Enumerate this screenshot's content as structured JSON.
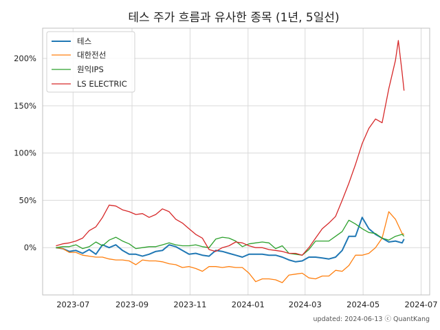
{
  "chart_data": {
    "type": "line",
    "title": "테스 주가 흐름과 유사한 종목 (1년, 5일선)",
    "xlabel": "",
    "ylabel": "",
    "x_ticks": [
      "2023-07",
      "2023-09",
      "2023-11",
      "2024-01",
      "2024-03",
      "2024-05",
      "2024-07"
    ],
    "y_ticks": [
      "0%",
      "50%",
      "100%",
      "150%",
      "200%"
    ],
    "y_tick_values": [
      0,
      50,
      100,
      150,
      200
    ],
    "xlim": [
      "2023-05-30",
      "2024-07-10"
    ],
    "ylim": [
      -50,
      232
    ],
    "grid": true,
    "legend_position": "top-left",
    "series": [
      {
        "name": "테스",
        "color": "#1f77b4",
        "points": [
          [
            "2023-06-13",
            0
          ],
          [
            "2023-06-20",
            -1
          ],
          [
            "2023-06-27",
            -4
          ],
          [
            "2023-07-04",
            -3
          ],
          [
            "2023-07-11",
            -6
          ],
          [
            "2023-07-18",
            -2
          ],
          [
            "2023-07-25",
            -7
          ],
          [
            "2023-08-01",
            3
          ],
          [
            "2023-08-08",
            0
          ],
          [
            "2023-08-15",
            3
          ],
          [
            "2023-08-22",
            -3
          ],
          [
            "2023-08-29",
            -7
          ],
          [
            "2023-09-05",
            -7
          ],
          [
            "2023-09-12",
            -9
          ],
          [
            "2023-09-19",
            -7
          ],
          [
            "2023-09-26",
            -4
          ],
          [
            "2023-10-03",
            -3
          ],
          [
            "2023-10-10",
            3
          ],
          [
            "2023-10-17",
            1
          ],
          [
            "2023-10-24",
            -3
          ],
          [
            "2023-10-31",
            -7
          ],
          [
            "2023-11-07",
            -6
          ],
          [
            "2023-11-14",
            -8
          ],
          [
            "2023-11-21",
            -9
          ],
          [
            "2023-11-28",
            -3
          ],
          [
            "2023-12-05",
            -4
          ],
          [
            "2023-12-12",
            -6
          ],
          [
            "2023-12-19",
            -8
          ],
          [
            "2023-12-26",
            -10
          ],
          [
            "2024-01-02",
            -7
          ],
          [
            "2024-01-09",
            -7
          ],
          [
            "2024-01-16",
            -7
          ],
          [
            "2024-01-23",
            -8
          ],
          [
            "2024-01-30",
            -8
          ],
          [
            "2024-02-06",
            -10
          ],
          [
            "2024-02-13",
            -13
          ],
          [
            "2024-02-20",
            -15
          ],
          [
            "2024-02-27",
            -14
          ],
          [
            "2024-03-05",
            -10
          ],
          [
            "2024-03-12",
            -10
          ],
          [
            "2024-03-19",
            -11
          ],
          [
            "2024-03-26",
            -12
          ],
          [
            "2024-04-02",
            -10
          ],
          [
            "2024-04-09",
            -3
          ],
          [
            "2024-04-16",
            12
          ],
          [
            "2024-04-23",
            12
          ],
          [
            "2024-04-30",
            32
          ],
          [
            "2024-05-07",
            20
          ],
          [
            "2024-05-14",
            14
          ],
          [
            "2024-05-21",
            10
          ],
          [
            "2024-05-28",
            6
          ],
          [
            "2024-06-04",
            7
          ],
          [
            "2024-06-11",
            5
          ],
          [
            "2024-06-13",
            9
          ]
        ]
      },
      {
        "name": "대한전선",
        "color": "#ff7f0e",
        "points": [
          [
            "2023-06-13",
            0
          ],
          [
            "2023-06-20",
            -1
          ],
          [
            "2023-06-27",
            -5
          ],
          [
            "2023-07-04",
            -5
          ],
          [
            "2023-07-11",
            -8
          ],
          [
            "2023-07-18",
            -9
          ],
          [
            "2023-07-25",
            -10
          ],
          [
            "2023-08-01",
            -10
          ],
          [
            "2023-08-08",
            -12
          ],
          [
            "2023-08-15",
            -13
          ],
          [
            "2023-08-22",
            -13
          ],
          [
            "2023-08-29",
            -14
          ],
          [
            "2023-09-05",
            -18
          ],
          [
            "2023-09-12",
            -13
          ],
          [
            "2023-09-19",
            -14
          ],
          [
            "2023-09-26",
            -14
          ],
          [
            "2023-10-03",
            -15
          ],
          [
            "2023-10-10",
            -17
          ],
          [
            "2023-10-17",
            -18
          ],
          [
            "2023-10-24",
            -21
          ],
          [
            "2023-10-31",
            -20
          ],
          [
            "2023-11-07",
            -22
          ],
          [
            "2023-11-14",
            -25
          ],
          [
            "2023-11-21",
            -20
          ],
          [
            "2023-11-28",
            -20
          ],
          [
            "2023-12-05",
            -21
          ],
          [
            "2023-12-12",
            -20
          ],
          [
            "2023-12-19",
            -21
          ],
          [
            "2023-12-26",
            -21
          ],
          [
            "2024-01-02",
            -27
          ],
          [
            "2024-01-09",
            -36
          ],
          [
            "2024-01-16",
            -33
          ],
          [
            "2024-01-23",
            -33
          ],
          [
            "2024-01-30",
            -34
          ],
          [
            "2024-02-06",
            -37
          ],
          [
            "2024-02-13",
            -29
          ],
          [
            "2024-02-20",
            -28
          ],
          [
            "2024-02-27",
            -27
          ],
          [
            "2024-03-05",
            -32
          ],
          [
            "2024-03-12",
            -33
          ],
          [
            "2024-03-19",
            -30
          ],
          [
            "2024-03-26",
            -30
          ],
          [
            "2024-04-02",
            -24
          ],
          [
            "2024-04-09",
            -25
          ],
          [
            "2024-04-16",
            -19
          ],
          [
            "2024-04-23",
            -8
          ],
          [
            "2024-04-30",
            -8
          ],
          [
            "2024-05-07",
            -6
          ],
          [
            "2024-05-14",
            0
          ],
          [
            "2024-05-21",
            10
          ],
          [
            "2024-05-28",
            38
          ],
          [
            "2024-06-04",
            30
          ],
          [
            "2024-06-11",
            15
          ],
          [
            "2024-06-13",
            14
          ]
        ]
      },
      {
        "name": "원익IPS",
        "color": "#2ca02c",
        "points": [
          [
            "2023-06-13",
            0
          ],
          [
            "2023-06-20",
            1
          ],
          [
            "2023-06-27",
            1
          ],
          [
            "2023-07-04",
            3
          ],
          [
            "2023-07-11",
            -1
          ],
          [
            "2023-07-18",
            1
          ],
          [
            "2023-07-25",
            6
          ],
          [
            "2023-08-01",
            2
          ],
          [
            "2023-08-08",
            8
          ],
          [
            "2023-08-15",
            11
          ],
          [
            "2023-08-22",
            7
          ],
          [
            "2023-08-29",
            4
          ],
          [
            "2023-09-05",
            -1
          ],
          [
            "2023-09-12",
            0
          ],
          [
            "2023-09-19",
            1
          ],
          [
            "2023-09-26",
            1
          ],
          [
            "2023-10-03",
            3
          ],
          [
            "2023-10-10",
            5
          ],
          [
            "2023-10-17",
            3
          ],
          [
            "2023-10-24",
            2
          ],
          [
            "2023-10-31",
            2
          ],
          [
            "2023-11-07",
            3
          ],
          [
            "2023-11-14",
            1
          ],
          [
            "2023-11-21",
            0
          ],
          [
            "2023-11-28",
            9
          ],
          [
            "2023-12-05",
            11
          ],
          [
            "2023-12-12",
            10
          ],
          [
            "2023-12-19",
            7
          ],
          [
            "2023-12-26",
            1
          ],
          [
            "2024-01-02",
            4
          ],
          [
            "2024-01-09",
            5
          ],
          [
            "2024-01-16",
            6
          ],
          [
            "2024-01-23",
            5
          ],
          [
            "2024-01-30",
            -1
          ],
          [
            "2024-02-06",
            2
          ],
          [
            "2024-02-13",
            -6
          ],
          [
            "2024-02-20",
            -7
          ],
          [
            "2024-02-27",
            -8
          ],
          [
            "2024-03-05",
            -2
          ],
          [
            "2024-03-12",
            7
          ],
          [
            "2024-03-19",
            7
          ],
          [
            "2024-03-26",
            7
          ],
          [
            "2024-04-02",
            12
          ],
          [
            "2024-04-09",
            17
          ],
          [
            "2024-04-16",
            29
          ],
          [
            "2024-04-23",
            25
          ],
          [
            "2024-04-30",
            20
          ],
          [
            "2024-05-07",
            16
          ],
          [
            "2024-05-14",
            15
          ],
          [
            "2024-05-21",
            10
          ],
          [
            "2024-05-28",
            8
          ],
          [
            "2024-06-04",
            12
          ],
          [
            "2024-06-11",
            14
          ],
          [
            "2024-06-13",
            12
          ]
        ]
      },
      {
        "name": "LS ELECTRIC",
        "color": "#d62728",
        "points": [
          [
            "2023-06-13",
            2
          ],
          [
            "2023-06-20",
            4
          ],
          [
            "2023-06-27",
            5
          ],
          [
            "2023-07-04",
            7
          ],
          [
            "2023-07-11",
            10
          ],
          [
            "2023-07-18",
            18
          ],
          [
            "2023-07-25",
            22
          ],
          [
            "2023-08-01",
            32
          ],
          [
            "2023-08-08",
            45
          ],
          [
            "2023-08-15",
            44
          ],
          [
            "2023-08-22",
            40
          ],
          [
            "2023-08-29",
            38
          ],
          [
            "2023-09-05",
            35
          ],
          [
            "2023-09-12",
            36
          ],
          [
            "2023-09-19",
            32
          ],
          [
            "2023-09-26",
            35
          ],
          [
            "2023-10-03",
            41
          ],
          [
            "2023-10-10",
            38
          ],
          [
            "2023-10-17",
            30
          ],
          [
            "2023-10-24",
            26
          ],
          [
            "2023-10-31",
            20
          ],
          [
            "2023-11-07",
            14
          ],
          [
            "2023-11-14",
            10
          ],
          [
            "2023-11-21",
            -2
          ],
          [
            "2023-11-28",
            -4
          ],
          [
            "2023-12-05",
            0
          ],
          [
            "2023-12-12",
            2
          ],
          [
            "2023-12-19",
            6
          ],
          [
            "2023-12-26",
            5
          ],
          [
            "2024-01-02",
            2
          ],
          [
            "2024-01-09",
            0
          ],
          [
            "2024-01-16",
            0
          ],
          [
            "2024-01-23",
            -2
          ],
          [
            "2024-01-30",
            -3
          ],
          [
            "2024-02-06",
            -4
          ],
          [
            "2024-02-13",
            -6
          ],
          [
            "2024-02-20",
            -6
          ],
          [
            "2024-02-27",
            -8
          ],
          [
            "2024-03-05",
            0
          ],
          [
            "2024-03-12",
            10
          ],
          [
            "2024-03-19",
            20
          ],
          [
            "2024-03-26",
            26
          ],
          [
            "2024-04-02",
            33
          ],
          [
            "2024-04-09",
            50
          ],
          [
            "2024-04-16",
            68
          ],
          [
            "2024-04-23",
            88
          ],
          [
            "2024-04-30",
            110
          ],
          [
            "2024-05-07",
            126
          ],
          [
            "2024-05-14",
            136
          ],
          [
            "2024-05-21",
            132
          ],
          [
            "2024-05-28",
            168
          ],
          [
            "2024-06-04",
            198
          ],
          [
            "2024-06-07",
            219
          ],
          [
            "2024-06-11",
            185
          ],
          [
            "2024-06-13",
            166
          ]
        ]
      }
    ]
  },
  "footer": {
    "updated": "updated: 2024-06-13 ⓒ QuantKang"
  }
}
